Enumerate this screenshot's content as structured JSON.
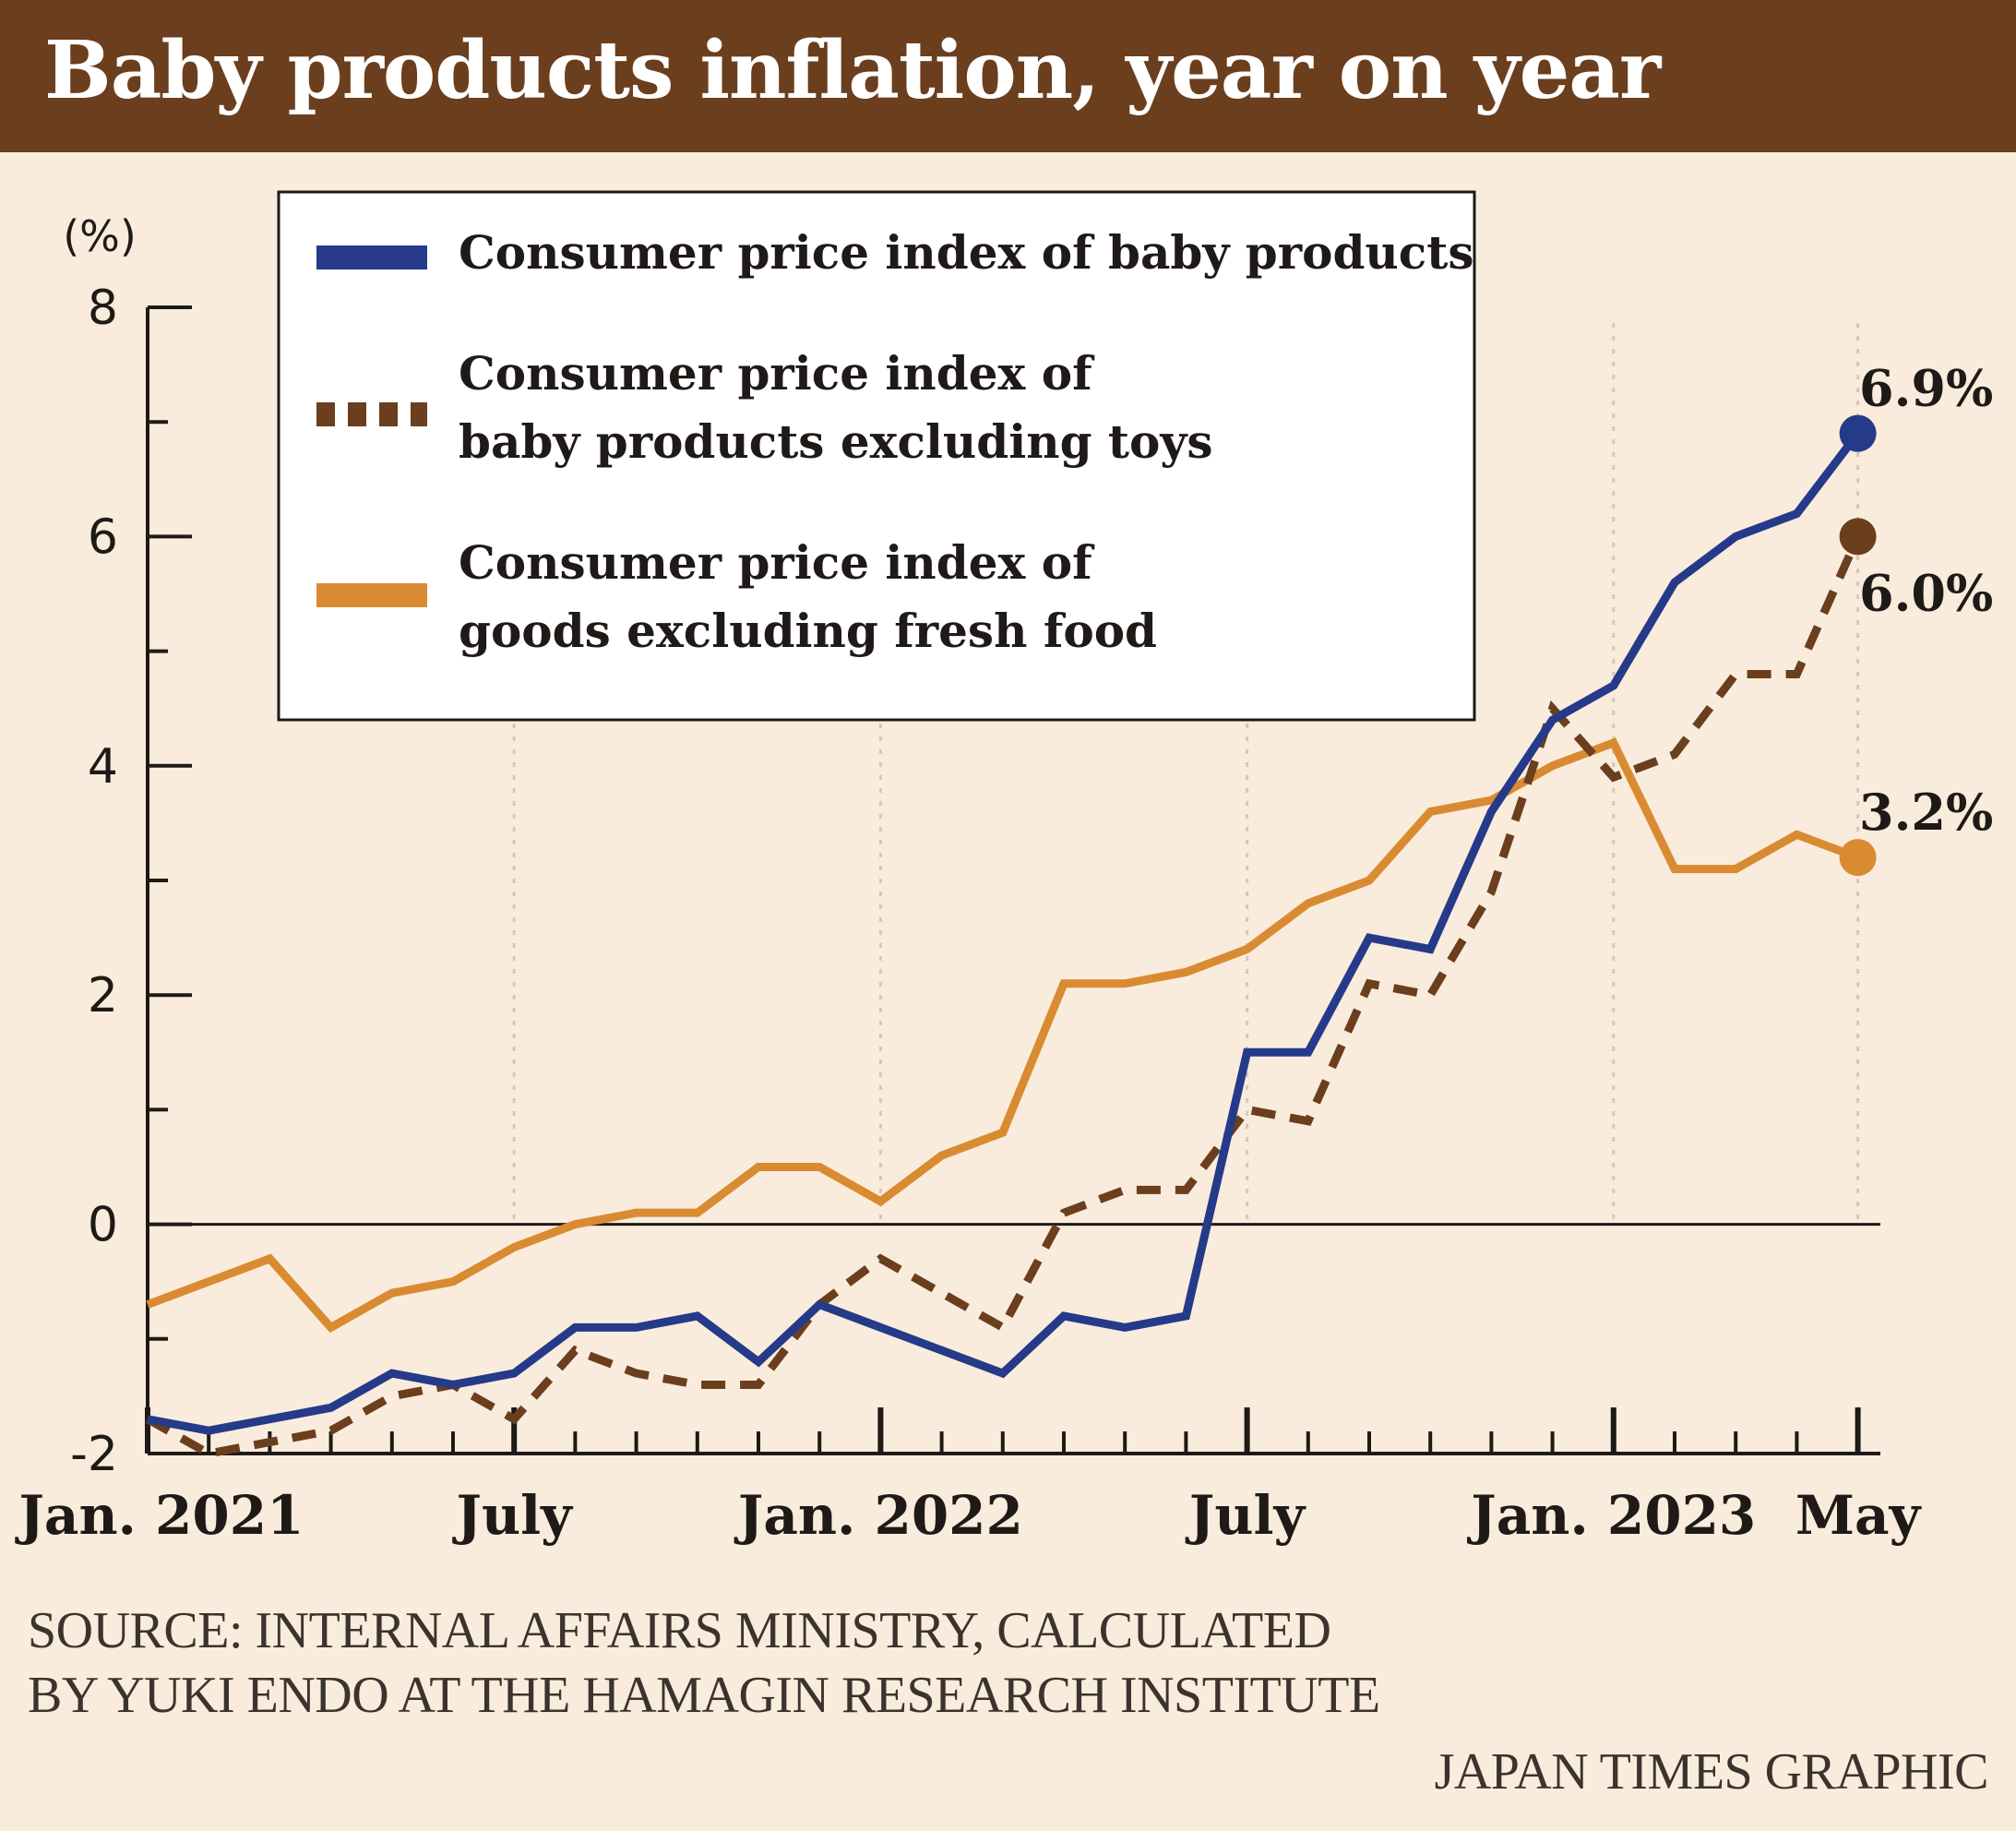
{
  "title": "Baby products inflation, year on year",
  "source_lines": [
    "SOURCE: INTERNAL AFFAIRS MINISTRY, CALCULATED",
    "BY YUKI ENDO AT THE HAMAGIN RESEARCH INSTITUTE"
  ],
  "credit": "JAPAN TIMES GRAPHIC",
  "chart_data": {
    "type": "line",
    "title": "Baby products inflation, year on year",
    "ylabel": "(%)",
    "ylim": [
      -2,
      8
    ],
    "yticks": [
      -2,
      0,
      2,
      4,
      6,
      8
    ],
    "x_tick_labels": [
      {
        "index": 0,
        "label": "Jan. 2021"
      },
      {
        "index": 6,
        "label": "July"
      },
      {
        "index": 12,
        "label": "Jan. 2022"
      },
      {
        "index": 18,
        "label": "July"
      },
      {
        "index": 24,
        "label": "Jan. 2023"
      },
      {
        "index": 28,
        "label": "May"
      }
    ],
    "grid": "vertical dotted at Jan./July",
    "legend_position": "top-left",
    "series": [
      {
        "name": "Consumer price index of goods excluding fresh food",
        "legend_lines": [
          "Consumer price index of",
          "goods excluding fresh food"
        ],
        "color": "#d98b32",
        "style": "solid",
        "values": [
          -0.7,
          -0.5,
          -0.3,
          -0.9,
          -0.6,
          -0.5,
          -0.2,
          0.0,
          0.1,
          0.1,
          0.5,
          0.5,
          0.2,
          0.6,
          0.8,
          2.1,
          2.1,
          2.2,
          2.4,
          2.8,
          3.0,
          3.6,
          3.7,
          4.0,
          4.2,
          3.1,
          3.1,
          3.4,
          3.2
        ],
        "end_label": "3.2%"
      },
      {
        "name": "Consumer price index of baby products excluding toys",
        "legend_lines": [
          "Consumer price index of",
          "baby products excluding toys"
        ],
        "color": "#6b3e1d",
        "style": "dashed",
        "values": [
          -1.7,
          -2.0,
          -1.9,
          -1.8,
          -1.5,
          -1.4,
          -1.7,
          -1.1,
          -1.3,
          -1.4,
          -1.4,
          -0.7,
          -0.3,
          -0.6,
          -0.9,
          0.1,
          0.3,
          0.3,
          1.0,
          0.9,
          2.1,
          2.0,
          2.9,
          4.5,
          3.9,
          4.1,
          4.8,
          4.8,
          6.0
        ],
        "end_label": "6.0%"
      },
      {
        "name": "Consumer price index of baby products",
        "legend_lines": [
          "Consumer price index of baby products"
        ],
        "color": "#263a8a",
        "style": "solid",
        "values": [
          -1.7,
          -1.8,
          -1.7,
          -1.6,
          -1.3,
          -1.4,
          -1.3,
          -0.9,
          -0.9,
          -0.8,
          -1.2,
          -0.7,
          -0.9,
          -1.1,
          -1.3,
          -0.8,
          -0.9,
          -0.8,
          1.5,
          1.5,
          2.5,
          2.4,
          3.6,
          4.4,
          4.7,
          5.6,
          6.0,
          6.2,
          6.9
        ],
        "end_label": "6.9%"
      }
    ]
  }
}
